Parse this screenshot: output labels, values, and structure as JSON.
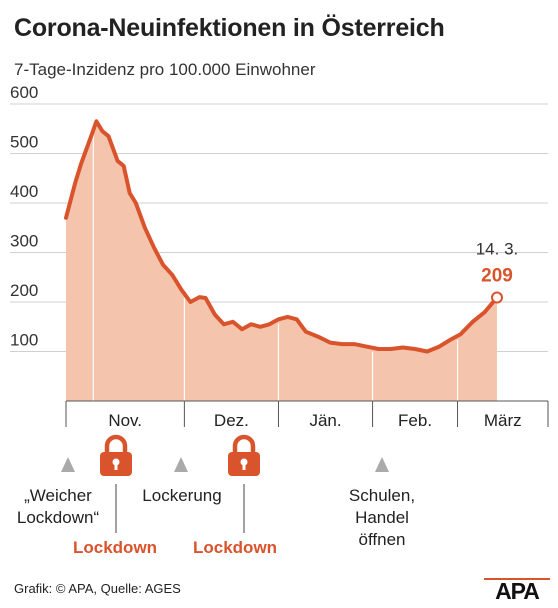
{
  "title": "Corona-Neuinfektionen in Österreich",
  "subtitle": "7-Tage-Inzidenz pro 100.000 Einwohner",
  "colors": {
    "line": "#d9532c",
    "fill": "#f5c4ac",
    "accent": "#d9532c",
    "grey": "#aaaaaa"
  },
  "chart_data": {
    "type": "area",
    "title": "Corona-Neuinfektionen in Österreich",
    "subtitle": "7-Tage-Inzidenz pro 100.000 Einwohner",
    "ylim": [
      0,
      600
    ],
    "yticks": [
      100,
      200,
      300,
      400,
      500,
      600
    ],
    "x_domain": [
      "2020-10-23",
      "2021-03-14"
    ],
    "months": [
      "Nov.",
      "Dez.",
      "Jän.",
      "Feb.",
      "März"
    ],
    "month_starts": [
      "2020-11-01",
      "2020-12-01",
      "2021-01-01",
      "2021-02-01",
      "2021-03-01"
    ],
    "series": [
      {
        "dates": [
          "2020-10-23",
          "2020-10-26",
          "2020-10-28",
          "2020-10-31",
          "2020-11-02",
          "2020-11-04",
          "2020-11-06",
          "2020-11-09",
          "2020-11-11",
          "2020-11-13",
          "2020-11-15",
          "2020-11-18",
          "2020-11-21",
          "2020-11-24",
          "2020-11-27",
          "2020-11-30",
          "2020-12-03",
          "2020-12-06",
          "2020-12-08",
          "2020-12-11",
          "2020-12-14",
          "2020-12-17",
          "2020-12-20",
          "2020-12-23",
          "2020-12-26",
          "2020-12-29",
          "2021-01-01",
          "2021-01-04",
          "2021-01-07",
          "2021-01-10",
          "2021-01-14",
          "2021-01-18",
          "2021-01-22",
          "2021-01-26",
          "2021-01-30",
          "2021-02-03",
          "2021-02-07",
          "2021-02-11",
          "2021-02-15",
          "2021-02-19",
          "2021-02-23",
          "2021-02-27",
          "2021-03-02",
          "2021-03-06",
          "2021-03-10",
          "2021-03-14"
        ],
        "values": [
          370,
          440,
          480,
          530,
          565,
          545,
          535,
          485,
          475,
          420,
          400,
          350,
          310,
          275,
          255,
          225,
          200,
          210,
          208,
          175,
          155,
          160,
          145,
          155,
          150,
          155,
          165,
          170,
          165,
          140,
          130,
          118,
          115,
          115,
          110,
          105,
          105,
          108,
          105,
          100,
          110,
          125,
          135,
          160,
          180,
          209
        ]
      }
    ],
    "annotation": {
      "date": "2021-03-14",
      "label": "14. 3.",
      "value_label": "209"
    }
  },
  "events": [
    {
      "label": "„Weicher Lockdown“",
      "lines": [
        "„Weicher",
        "Lockdown“"
      ],
      "kind": "marker"
    },
    {
      "label": "Lockdown",
      "kind": "lock"
    },
    {
      "label": "Lockerung",
      "lines": [
        "Lockerung"
      ],
      "kind": "marker"
    },
    {
      "label": "Lockdown",
      "kind": "lock"
    },
    {
      "label": "Schulen, Handel öffnen",
      "lines": [
        "Schulen,",
        "Handel",
        "öffnen"
      ],
      "kind": "marker"
    }
  ],
  "footer": "Grafik: © APA, Quelle: AGES",
  "logo_text": "APA"
}
